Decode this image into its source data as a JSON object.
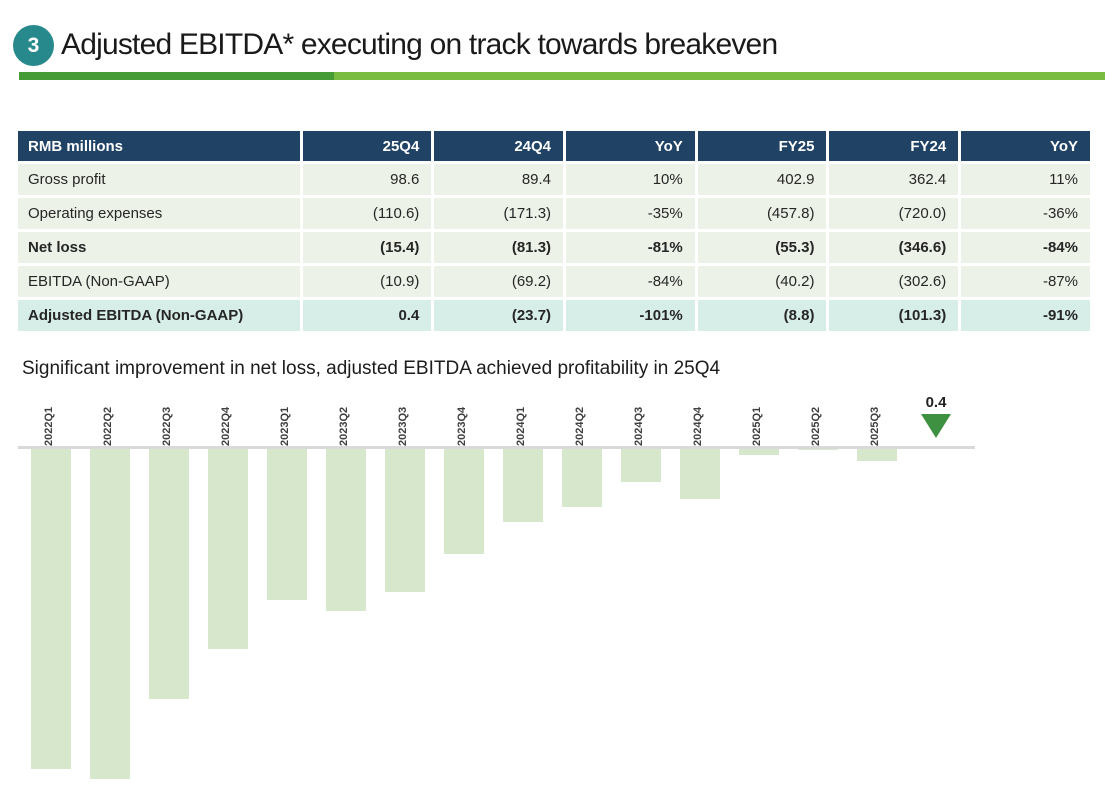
{
  "slide": {
    "badge_number": "3",
    "title": "Adjusted EBITDA* executing on track towards breakeven"
  },
  "colors": {
    "badge_teal": "#27898b",
    "underline_dark_green": "#459b36",
    "underline_light_green": "#7abc41",
    "table_header_navy": "#1f4265",
    "table_row_green": "#ecf2e8",
    "table_highlight_teal": "#d7eee8",
    "bar_light_green": "#d7e7cc",
    "marker_green": "#3e9140",
    "axis_gray": "#d9d9d9"
  },
  "table": {
    "header": [
      "RMB millions",
      "25Q4",
      "24Q4",
      "YoY",
      "FY25",
      "FY24",
      "YoY"
    ],
    "rows": [
      {
        "label": "Gross profit",
        "values": [
          "98.6",
          "89.4",
          "10%",
          "402.9",
          "362.4",
          "11%"
        ],
        "bold": false,
        "highlight": false
      },
      {
        "label": "Operating expenses",
        "values": [
          "(110.6)",
          "(171.3)",
          "-35%",
          "(457.8)",
          "(720.0)",
          "-36%"
        ],
        "bold": false,
        "highlight": false
      },
      {
        "label": "Net loss",
        "values": [
          "(15.4)",
          "(81.3)",
          "-81%",
          "(55.3)",
          "(346.6)",
          "-84%"
        ],
        "bold": true,
        "highlight": false
      },
      {
        "label": "EBITDA (Non-GAAP)",
        "values": [
          "(10.9)",
          "(69.2)",
          "-84%",
          "(40.2)",
          "(302.6)",
          "-87%"
        ],
        "bold": false,
        "highlight": false
      },
      {
        "label": "Adjusted EBITDA (Non-GAAP)",
        "values": [
          "0.4",
          "(23.7)",
          "-101%",
          "(8.8)",
          "(101.3)",
          "-91%"
        ],
        "bold": true,
        "highlight": true
      }
    ]
  },
  "chart_data": {
    "type": "bar",
    "title": "Significant improvement in net loss, adjusted EBITDA achieved profitability in 25Q4",
    "unit": "RMB millions",
    "x_labels": [
      "2022Q1",
      "2022Q2",
      "2022Q3",
      "2022Q4",
      "2023Q1",
      "2023Q2",
      "2023Q3",
      "2023Q4",
      "2024Q1",
      "2024Q2",
      "2024Q3",
      "2024Q4",
      "2025Q1",
      "2025Q2",
      "2025Q3"
    ],
    "values": [
      -152,
      -157,
      -119,
      -95,
      -72,
      -77,
      -68,
      -50,
      -34.5,
      -27.5,
      -15.6,
      -23.7,
      -3.0,
      -0.7,
      -5.5
    ],
    "final_point": {
      "label": "0.4",
      "value": 0.4
    },
    "ylim": [
      -160,
      10
    ],
    "gridlines": false,
    "legend": false
  }
}
